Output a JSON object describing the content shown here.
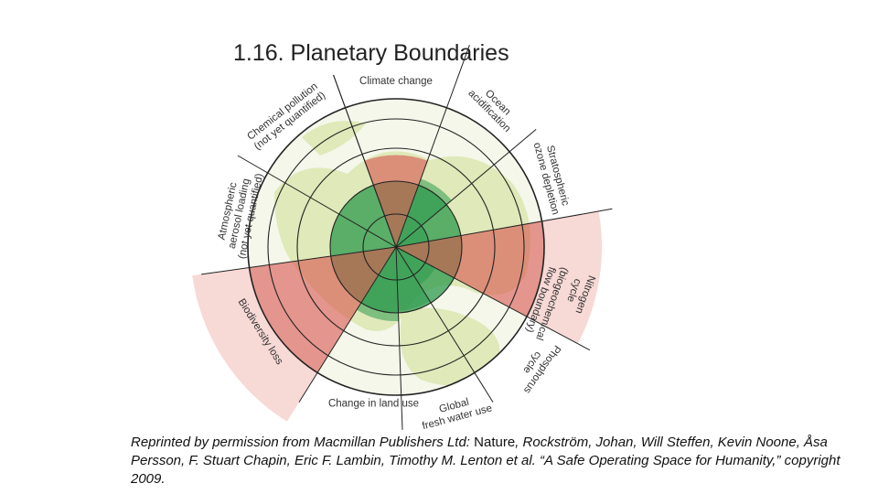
{
  "slide": {
    "title": "1.16. Planetary Boundaries"
  },
  "diagram": {
    "segments": [
      {
        "id": "climate",
        "label_lines": [
          "Climate change"
        ],
        "status": "exceeded",
        "level": 0.62
      },
      {
        "id": "ocean",
        "label_lines": [
          "Ocean",
          "acidification"
        ],
        "status": "safe",
        "level": 0.49
      },
      {
        "id": "ozone",
        "label_lines": [
          "Stratospheric",
          "ozone depletion"
        ],
        "status": "safe",
        "level": 0.22
      },
      {
        "id": "nitrogen",
        "label_lines": [
          "Nitrogen",
          "cycle"
        ],
        "status": "exceeded",
        "level": 1.0
      },
      {
        "id": "biogeochemical",
        "label_lines": [
          "(biogeochemical",
          "flow boundary)"
        ],
        "status": "group-label"
      },
      {
        "id": "phosphorus",
        "label_lines": [
          "Phosphorus",
          "cycle"
        ],
        "status": "safe",
        "level": 0.3
      },
      {
        "id": "freshwater",
        "label_lines": [
          "Global",
          "fresh water use"
        ],
        "status": "safe",
        "level": 0.43
      },
      {
        "id": "landuse",
        "label_lines": [
          "Change in land use"
        ],
        "status": "safe",
        "level": 0.5
      },
      {
        "id": "biodiversity",
        "label_lines": [
          "Biodiversity loss"
        ],
        "status": "exceeded",
        "level": 1.0
      },
      {
        "id": "aerosol",
        "label_lines": [
          "Atmospheric",
          "aerosol loading",
          "(not yet quantified)"
        ],
        "status": "not-quantified"
      },
      {
        "id": "chemical",
        "label_lines": [
          "Chemical pollution",
          "(not yet quantified)"
        ],
        "status": "not-quantified"
      }
    ],
    "colors": {
      "safe_zone": "#2e9a4e",
      "exceeded": "#d9534f",
      "globe_land": "#dfe9b9",
      "ocean": "#ffffff",
      "lines": "#222222"
    }
  },
  "caption": {
    "prefix": "Reprinted by permission from Macmillan Publishers Ltd: ",
    "journal": "Nature",
    "rest": ", Rockström, Johan, Will Steffen, Kevin Noone, Åsa Persson, F. Stuart Chapin, Eric F. Lambin, Timothy M. Lenton et al. “A Safe Operating Space for Humanity,” copyright 2009."
  }
}
